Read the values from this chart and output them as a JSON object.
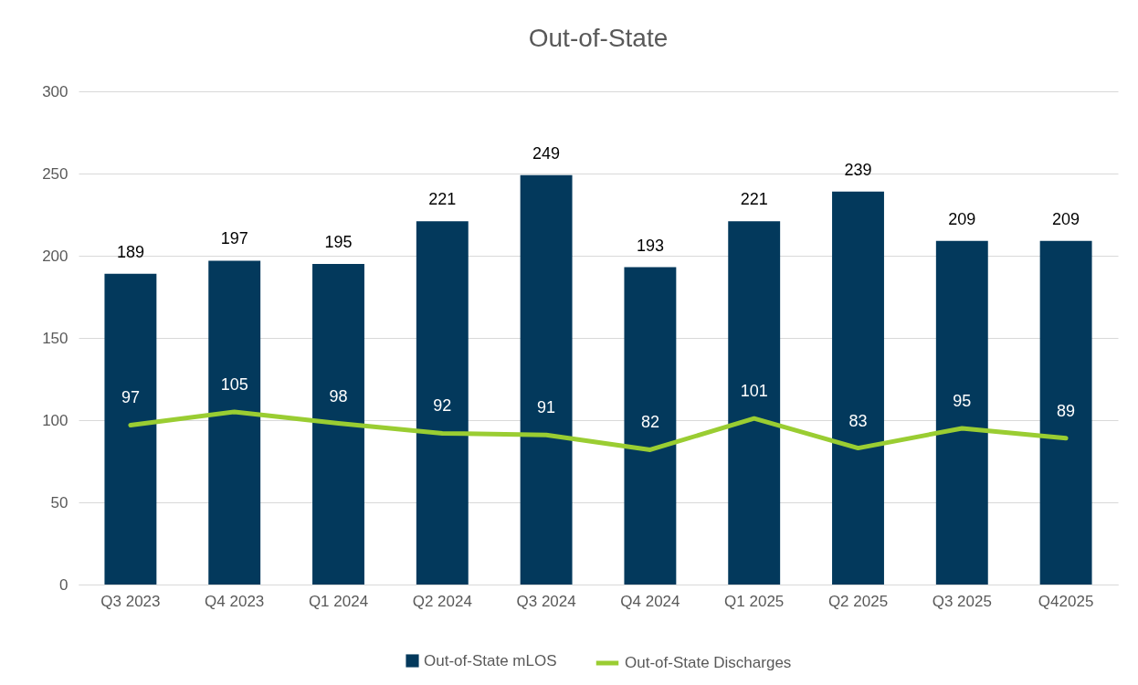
{
  "chart_data": {
    "type": "bar",
    "title": "Out-of-State",
    "categories": [
      "Q3 2023",
      "Q4 2023",
      "Q1 2024",
      "Q2 2024",
      "Q3 2024",
      "Q4 2024",
      "Q1 2025",
      "Q2 2025",
      "Q3 2025",
      "Q42025"
    ],
    "series": [
      {
        "name": "Out-of-State mLOS",
        "color": "#03395c",
        "values": [
          189,
          197,
          195,
          221,
          249,
          193,
          221,
          239,
          209,
          209
        ]
      },
      {
        "name": "Out-of-State Discharges",
        "type": "line",
        "color": "#9acd32",
        "values": [
          97,
          105,
          98,
          92,
          91,
          82,
          101,
          83,
          95,
          89
        ]
      }
    ],
    "ylim": [
      0,
      300
    ],
    "yticks": [
      0,
      50,
      100,
      150,
      200,
      250,
      300
    ],
    "grid": "y",
    "legend": "bottom",
    "data_labels": true
  }
}
